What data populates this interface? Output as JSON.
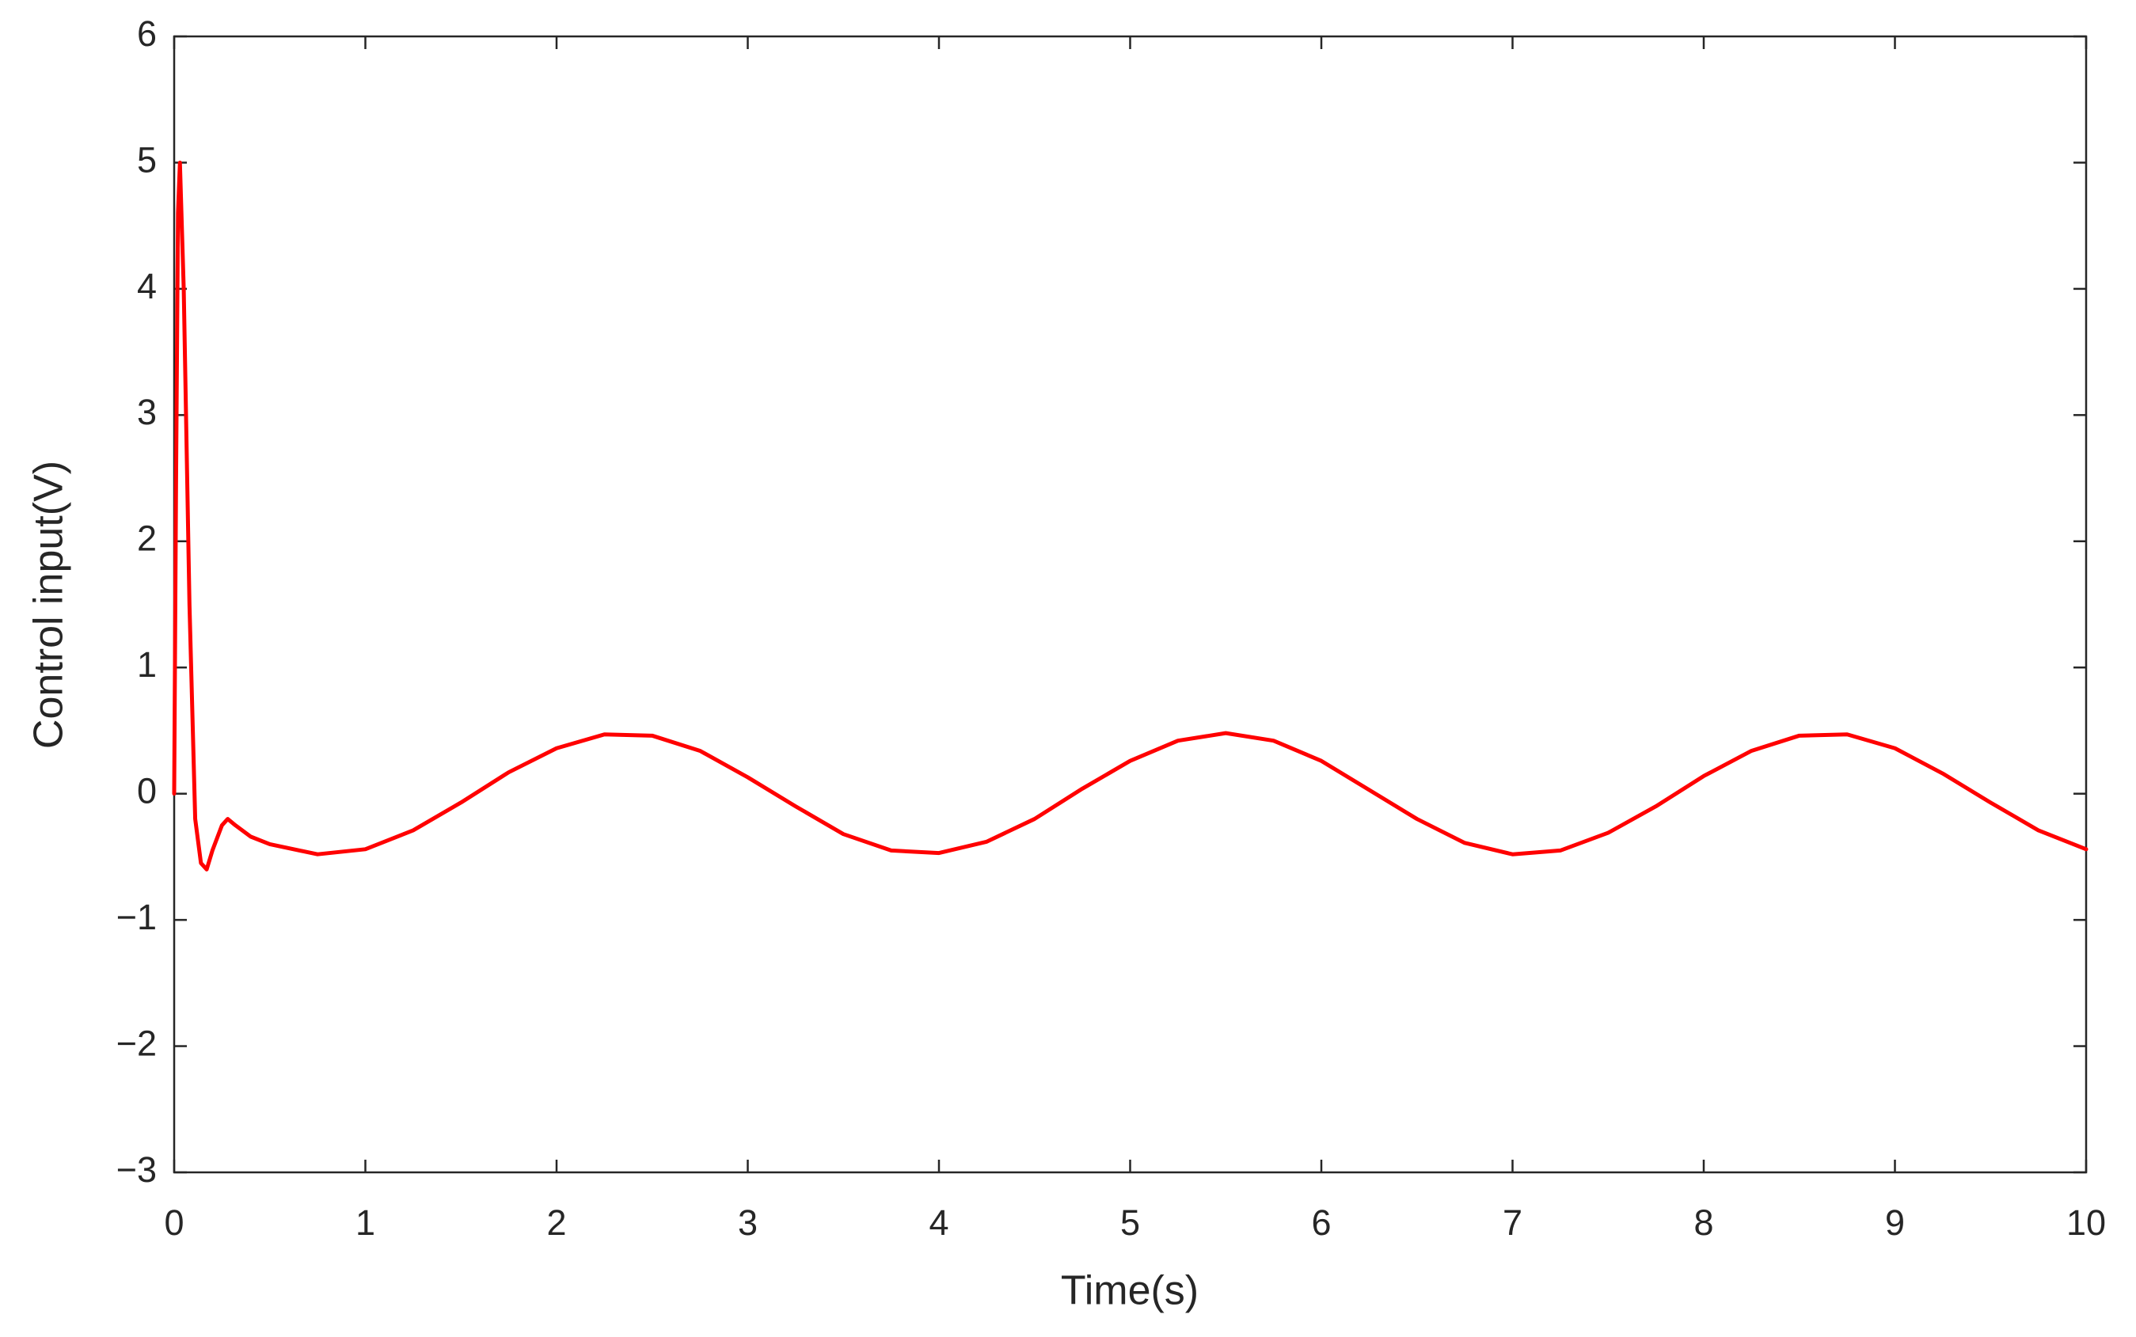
{
  "chart_data": {
    "type": "line",
    "xlabel": "Time(s)",
    "ylabel": "Control input(V)",
    "color": "#ff0000",
    "x": [
      0,
      0.01,
      0.02,
      0.03,
      0.05,
      0.08,
      0.11,
      0.14,
      0.17,
      0.2,
      0.25,
      0.28,
      0.32,
      0.4,
      0.5,
      0.75,
      1.0,
      1.25,
      1.5,
      1.75,
      2.0,
      2.25,
      2.5,
      2.75,
      3.0,
      3.25,
      3.5,
      3.75,
      4.0,
      4.25,
      4.5,
      4.75,
      5.0,
      5.25,
      5.5,
      5.75,
      6.0,
      6.25,
      6.5,
      6.75,
      7.0,
      7.25,
      7.5,
      7.75,
      8.0,
      8.25,
      8.5,
      8.75,
      9.0,
      9.25,
      9.5,
      9.75,
      10
    ],
    "values": [
      0,
      2.5,
      4.6,
      5.0,
      4.0,
      1.5,
      -0.2,
      -0.55,
      -0.6,
      -0.45,
      -0.25,
      -0.2,
      -0.25,
      -0.34,
      -0.4,
      -0.48,
      -0.44,
      -0.29,
      -0.07,
      0.17,
      0.36,
      0.47,
      0.46,
      0.34,
      0.13,
      -0.1,
      -0.32,
      -0.45,
      -0.47,
      -0.38,
      -0.2,
      0.04,
      0.26,
      0.42,
      0.48,
      0.42,
      0.26,
      0.03,
      -0.2,
      -0.39,
      -0.48,
      -0.45,
      -0.31,
      -0.1,
      0.14,
      0.34,
      0.46,
      0.47,
      0.36,
      0.16,
      -0.07,
      -0.29,
      -0.44
    ],
    "xlim": [
      0,
      10
    ],
    "xticks": [
      0,
      1,
      2,
      3,
      4,
      5,
      6,
      7,
      8,
      9,
      10
    ],
    "ylim": [
      -3,
      6
    ],
    "yticks": [
      {
        "value": -3,
        "label": "−3"
      },
      {
        "value": -2,
        "label": "−2"
      },
      {
        "value": -1,
        "label": "−1"
      },
      0,
      1,
      2,
      3,
      4,
      5,
      6
    ],
    "grid": false
  }
}
